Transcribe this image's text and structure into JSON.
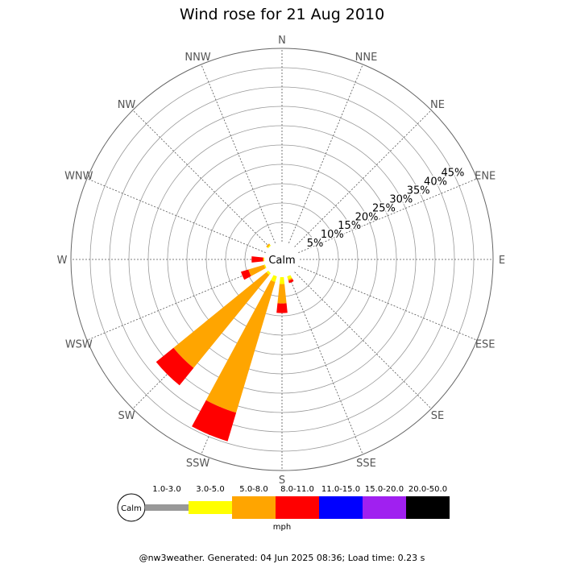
{
  "title": "Wind rose for 21 Aug 2010",
  "footer": "@nw3weather. Generated: 04 Jun 2025 08:36; Load time: 0.23 s",
  "calm_label": "Calm",
  "legend": {
    "unit": "mph",
    "calm_label": "Calm",
    "bins": [
      {
        "label": "1.0-3.0",
        "color": "#999999"
      },
      {
        "label": "3.0-5.0",
        "color": "#ffff00"
      },
      {
        "label": "5.0-8.0",
        "color": "#ffa500"
      },
      {
        "label": "8.0-11.0",
        "color": "#ff0000"
      },
      {
        "label": "11.0-15.0",
        "color": "#0000ff"
      },
      {
        "label": "15.0-20.0",
        "color": "#a020f0"
      },
      {
        "label": "20.0-50.0",
        "color": "#000000"
      }
    ]
  },
  "chart_data": {
    "type": "wind-rose",
    "title": "Wind rose for 21 Aug 2010",
    "directions": [
      "N",
      "NNE",
      "NE",
      "ENE",
      "E",
      "ESE",
      "SE",
      "SSE",
      "S",
      "SSW",
      "SW",
      "WSW",
      "W",
      "WNW",
      "NW",
      "NNW"
    ],
    "radial_ticks": [
      "5%",
      "10%",
      "15%",
      "20%",
      "25%",
      "30%",
      "35%",
      "40%",
      "45%"
    ],
    "radial_max": 50,
    "speed_unit": "mph",
    "series": [
      {
        "name": "1.0-3.0",
        "color": "#999999",
        "values": [
          0,
          0,
          0,
          0,
          0,
          0,
          0,
          0,
          0,
          0,
          0,
          0,
          0,
          0,
          0,
          0
        ]
      },
      {
        "name": "3.0-5.0",
        "color": "#ffff00",
        "values": [
          0,
          0,
          0,
          0,
          0,
          0,
          0,
          0.8,
          1.8,
          1.5,
          0.6,
          0.3,
          0.3,
          0,
          0.3,
          0
        ]
      },
      {
        "name": "5.0-8.0",
        "color": "#ffa500",
        "values": [
          0,
          0,
          0,
          0,
          0,
          0,
          0,
          0.4,
          5.0,
          35.3,
          31.0,
          4.2,
          0,
          0,
          0.4,
          0
        ]
      },
      {
        "name": "8.0-11.0",
        "color": "#ff0000",
        "values": [
          0,
          0,
          0,
          0,
          0,
          0,
          0,
          0.6,
          2.5,
          7.7,
          5.8,
          2.0,
          3.0,
          0,
          0,
          0
        ]
      },
      {
        "name": "11.0-15.0",
        "color": "#0000ff",
        "values": [
          0,
          0,
          0,
          0,
          0,
          0,
          0,
          0,
          0,
          0,
          0,
          0,
          0,
          0,
          0,
          0
        ]
      },
      {
        "name": "15.0-20.0",
        "color": "#a020f0",
        "values": [
          0,
          0,
          0,
          0,
          0,
          0,
          0,
          0,
          0,
          0,
          0,
          0,
          0,
          0,
          0,
          0
        ]
      },
      {
        "name": "20.0-50.0",
        "color": "#000000",
        "values": [
          0,
          0,
          0,
          0,
          0,
          0,
          0,
          0,
          0,
          0,
          0,
          0,
          0,
          0,
          0,
          0
        ]
      }
    ]
  }
}
